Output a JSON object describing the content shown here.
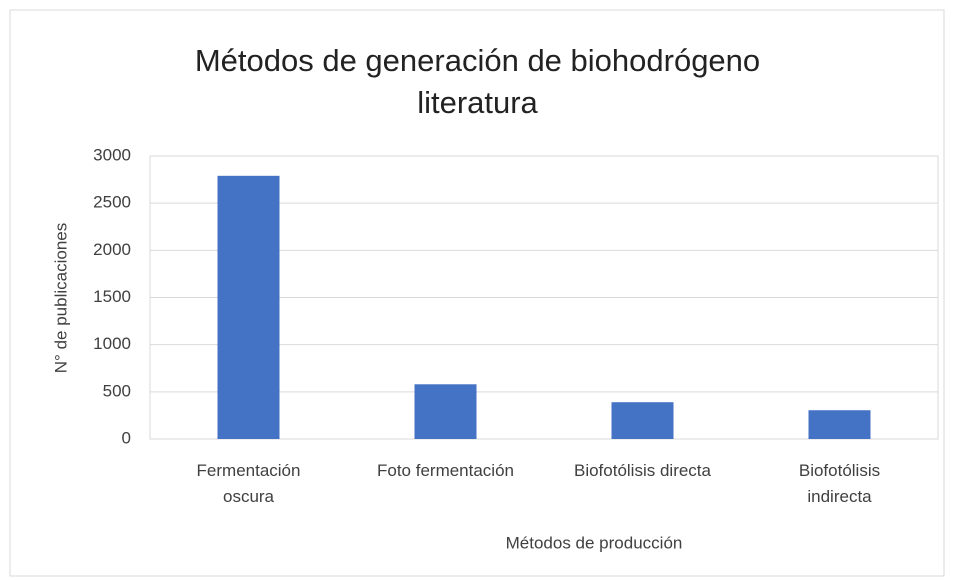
{
  "chart_data": {
    "type": "bar",
    "title": "Métodos de generación de biohodrógeno\nliteratura",
    "categories": [
      "Fermentación\noscura",
      "Foto fermentación",
      "Biofotólisis directa",
      "Biofotólisis\nindirecta"
    ],
    "values": [
      2790,
      580,
      390,
      305
    ],
    "color": "#4472c4",
    "x_label": "Métodos de producción",
    "y_label": "N° de publicaciones",
    "ylim": [
      0,
      3000
    ],
    "yticks": [
      0,
      500,
      1000,
      1500,
      2000,
      2500,
      3000
    ],
    "grid": true
  }
}
